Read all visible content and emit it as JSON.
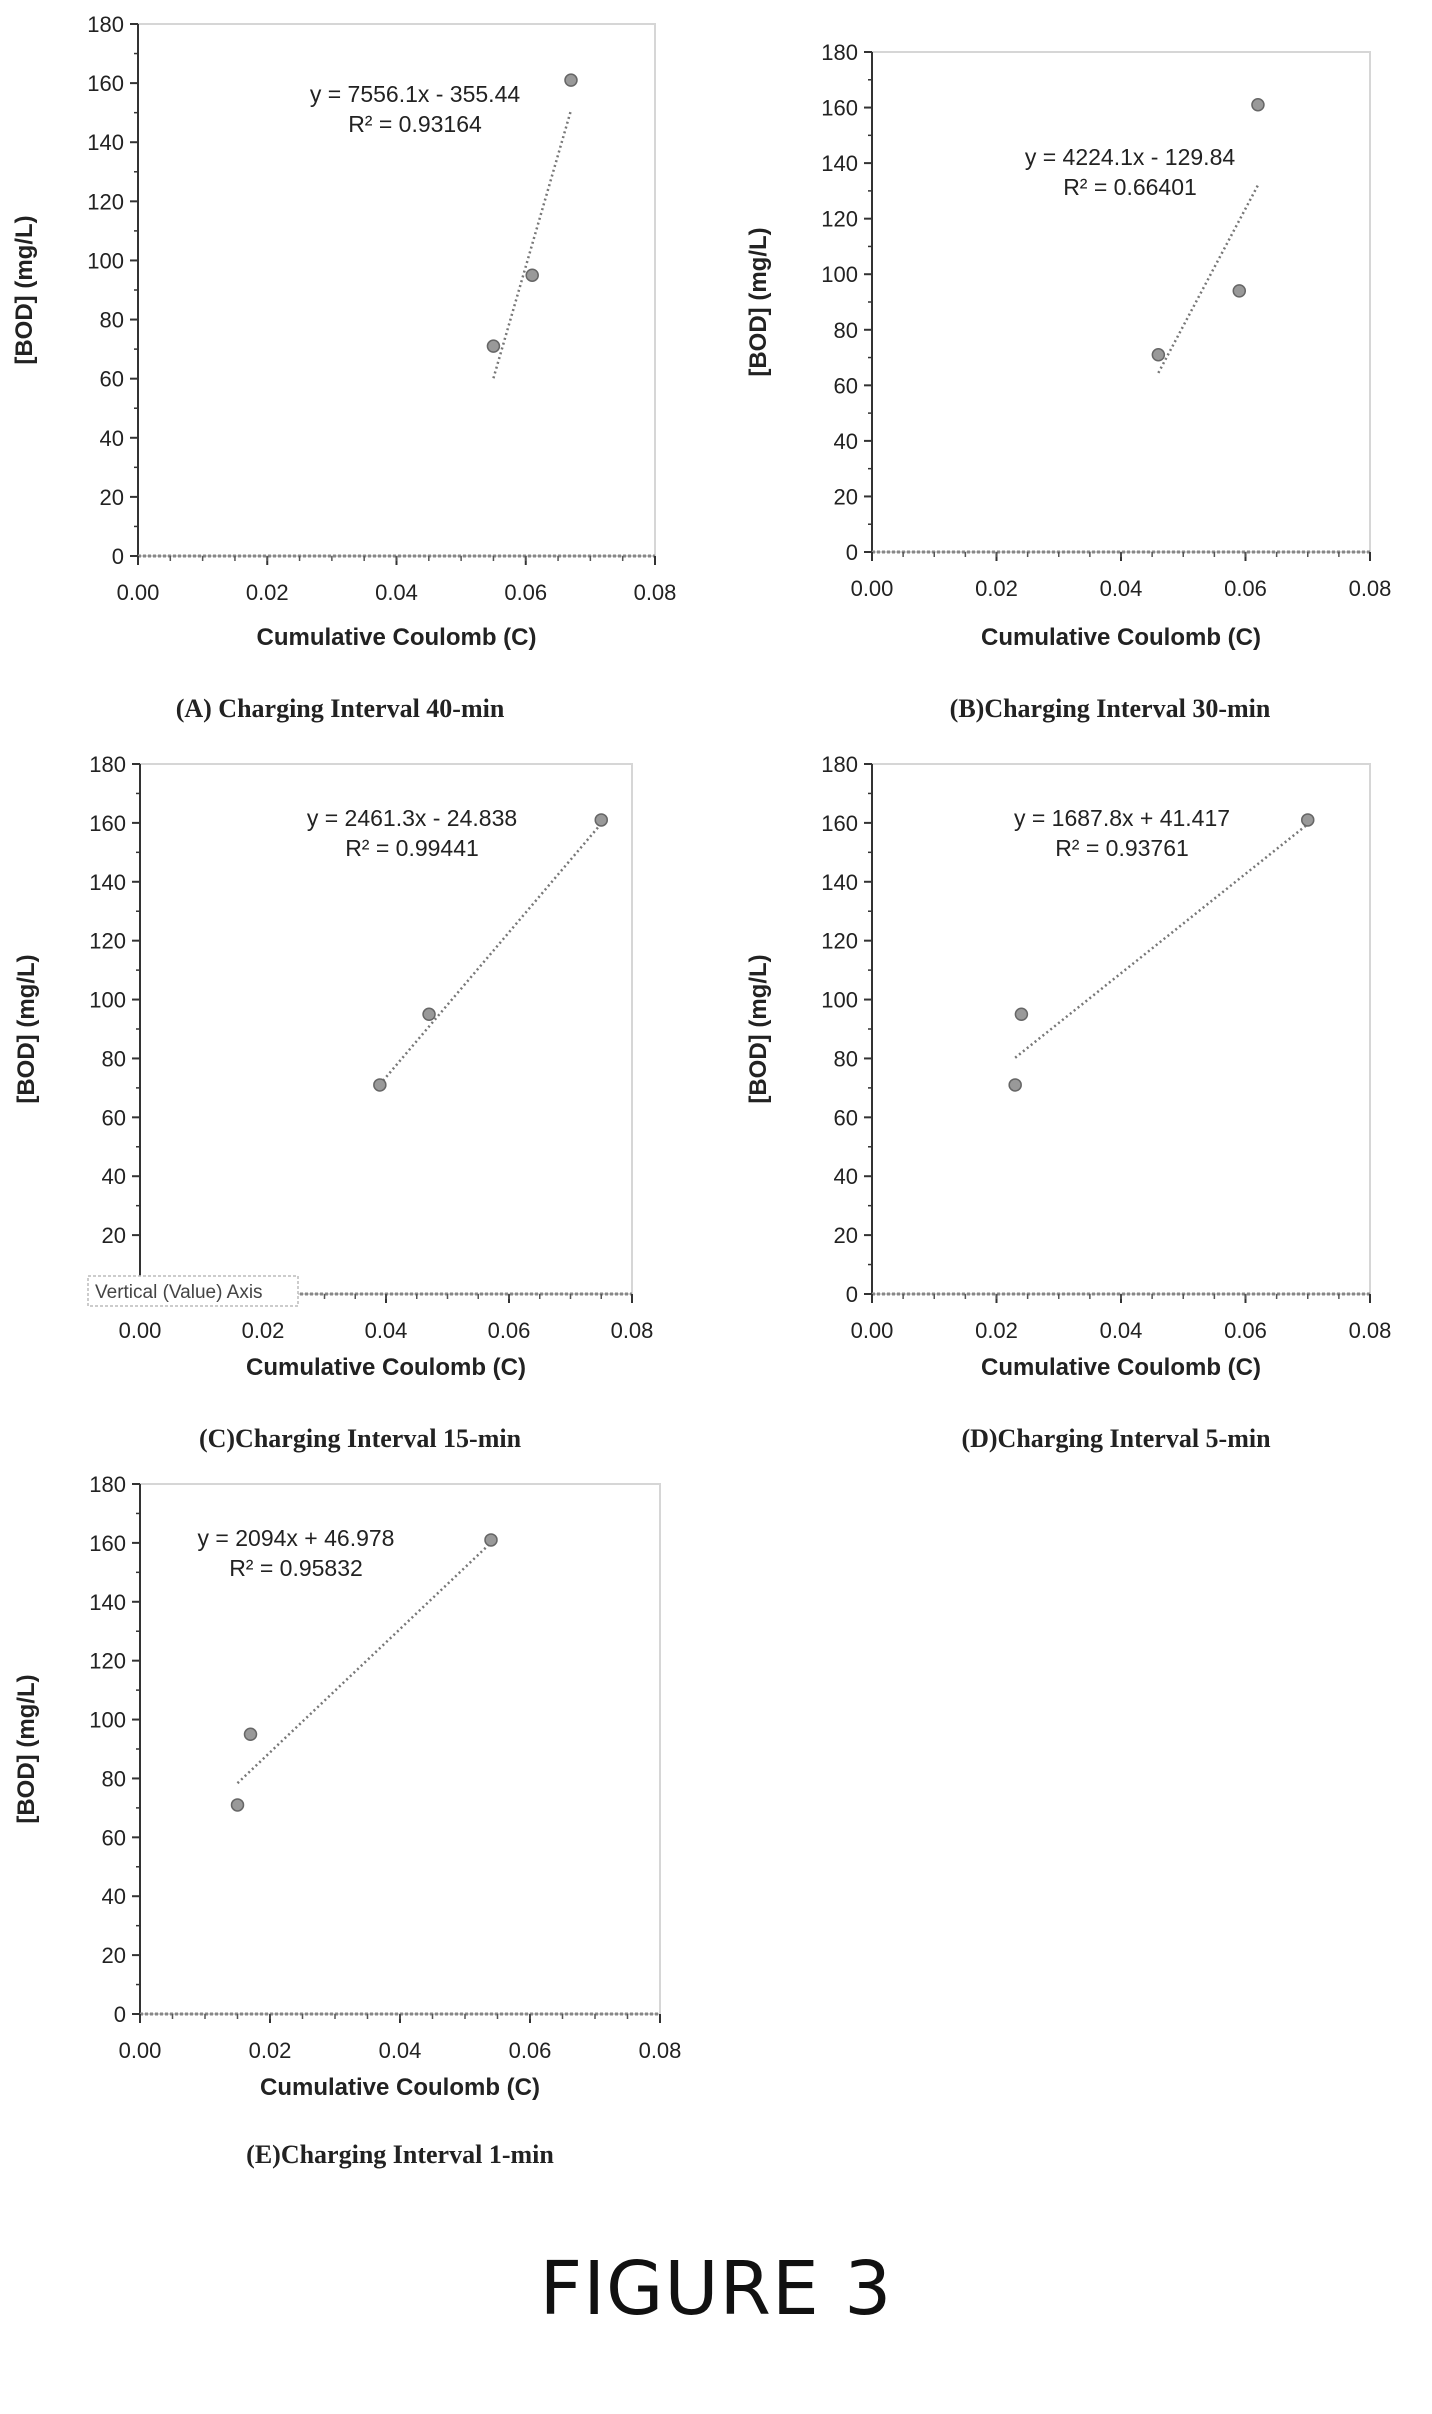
{
  "figure_label": "FIGURE 3",
  "chart_data": [
    {
      "type": "scatter",
      "caption": "(A) Charging Interval 40-min",
      "xlabel": "Cumulative Coulomb (C)",
      "ylabel": "[BOD] (mg/L)",
      "xlim": [
        0,
        0.08
      ],
      "ylim": [
        0,
        180
      ],
      "x_ticks": [
        "0.00",
        "0.02",
        "0.04",
        "0.06",
        "0.08"
      ],
      "y_ticks": [
        "0",
        "20",
        "40",
        "60",
        "80",
        "100",
        "120",
        "140",
        "160",
        "180"
      ],
      "points": [
        {
          "x": 0.055,
          "y": 71
        },
        {
          "x": 0.061,
          "y": 95
        },
        {
          "x": 0.067,
          "y": 161
        }
      ],
      "trendline": {
        "slope": 7556.1,
        "intercept": -355.44,
        "x_range": [
          0.055,
          0.067
        ]
      },
      "equation": "y = 7556.1x - 355.44",
      "r_squared": "R² = 0.93164",
      "grid": false
    },
    {
      "type": "scatter",
      "caption": "(B)Charging Interval 30-min",
      "xlabel": "Cumulative Coulomb (C)",
      "ylabel": "[BOD] (mg/L)",
      "xlim": [
        0,
        0.08
      ],
      "ylim": [
        0,
        180
      ],
      "x_ticks": [
        "0.00",
        "0.02",
        "0.04",
        "0.06",
        "0.08"
      ],
      "y_ticks": [
        "0",
        "20",
        "40",
        "60",
        "80",
        "100",
        "120",
        "140",
        "160",
        "180"
      ],
      "points": [
        {
          "x": 0.046,
          "y": 71
        },
        {
          "x": 0.059,
          "y": 94
        },
        {
          "x": 0.062,
          "y": 161
        }
      ],
      "trendline": {
        "slope": 4224.1,
        "intercept": -129.84,
        "x_range": [
          0.046,
          0.062
        ]
      },
      "equation": "y = 4224.1x - 129.84",
      "r_squared": "R² = 0.66401",
      "grid": false
    },
    {
      "type": "scatter",
      "caption": "(C)Charging Interval 15-min",
      "xlabel": "Cumulative Coulomb (C)",
      "ylabel": "[BOD] (mg/L)",
      "xlim": [
        0,
        0.08
      ],
      "ylim": [
        0,
        180
      ],
      "x_ticks": [
        "0.00",
        "0.02",
        "0.04",
        "0.06",
        "0.08"
      ],
      "y_ticks": [
        "20",
        "40",
        "60",
        "80",
        "100",
        "120",
        "140",
        "160",
        "180"
      ],
      "points": [
        {
          "x": 0.039,
          "y": 71
        },
        {
          "x": 0.047,
          "y": 95
        },
        {
          "x": 0.075,
          "y": 161
        }
      ],
      "trendline": {
        "slope": 2461.3,
        "intercept": -24.838,
        "x_range": [
          0.039,
          0.075
        ]
      },
      "equation": "y = 2461.3x - 24.838",
      "r_squared": "R² = 0.99441",
      "overlay_label": "Vertical (Value) Axis",
      "grid": false
    },
    {
      "type": "scatter",
      "caption": "(D)Charging Interval 5-min",
      "xlabel": "Cumulative Coulomb (C)",
      "ylabel": "[BOD] (mg/L)",
      "xlim": [
        0,
        0.08
      ],
      "ylim": [
        0,
        180
      ],
      "x_ticks": [
        "0.00",
        "0.02",
        "0.04",
        "0.06",
        "0.08"
      ],
      "y_ticks": [
        "0",
        "20",
        "40",
        "60",
        "80",
        "100",
        "120",
        "140",
        "160",
        "180"
      ],
      "points": [
        {
          "x": 0.023,
          "y": 71
        },
        {
          "x": 0.024,
          "y": 95
        },
        {
          "x": 0.07,
          "y": 161
        }
      ],
      "trendline": {
        "slope": 1687.8,
        "intercept": 41.417,
        "x_range": [
          0.023,
          0.07
        ]
      },
      "equation": "y = 1687.8x + 41.417",
      "r_squared": "R² = 0.93761",
      "grid": false
    },
    {
      "type": "scatter",
      "caption": "(E)Charging Interval 1-min",
      "xlabel": "Cumulative Coulomb (C)",
      "ylabel": "[BOD] (mg/L)",
      "xlim": [
        0,
        0.08
      ],
      "ylim": [
        0,
        180
      ],
      "x_ticks": [
        "0.00",
        "0.02",
        "0.04",
        "0.06",
        "0.08"
      ],
      "y_ticks": [
        "0",
        "20",
        "40",
        "60",
        "80",
        "100",
        "120",
        "140",
        "160",
        "180"
      ],
      "points": [
        {
          "x": 0.015,
          "y": 71
        },
        {
          "x": 0.017,
          "y": 95
        },
        {
          "x": 0.054,
          "y": 161
        }
      ],
      "trendline": {
        "slope": 2094,
        "intercept": 46.978,
        "x_range": [
          0.015,
          0.054
        ]
      },
      "equation": "y = 2094x + 46.978",
      "r_squared": "R² = 0.95832",
      "grid": false
    }
  ]
}
